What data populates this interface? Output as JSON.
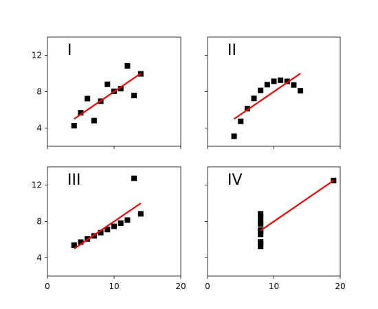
{
  "chart_data": [
    {
      "type": "scatter",
      "title": "I",
      "xlim": [
        0,
        20
      ],
      "ylim": [
        2,
        14
      ],
      "xticks": [
        0,
        10,
        20
      ],
      "yticks": [
        4,
        8,
        12
      ],
      "fit_line": {
        "x": [
          4,
          14
        ],
        "y": [
          5.0,
          10.0
        ],
        "color": "#ff0000"
      },
      "points": [
        {
          "x": 4,
          "y": 4.26
        },
        {
          "x": 5,
          "y": 5.68
        },
        {
          "x": 6,
          "y": 7.24
        },
        {
          "x": 7,
          "y": 4.82
        },
        {
          "x": 8,
          "y": 6.95
        },
        {
          "x": 9,
          "y": 8.81
        },
        {
          "x": 10,
          "y": 8.04
        },
        {
          "x": 11,
          "y": 8.33
        },
        {
          "x": 12,
          "y": 10.84
        },
        {
          "x": 13,
          "y": 7.58
        },
        {
          "x": 14,
          "y": 9.96
        }
      ]
    },
    {
      "type": "scatter",
      "title": "II",
      "xlim": [
        0,
        20
      ],
      "ylim": [
        2,
        14
      ],
      "xticks": [
        0,
        10,
        20
      ],
      "yticks": [
        4,
        8,
        12
      ],
      "fit_line": {
        "x": [
          4,
          14
        ],
        "y": [
          5.0,
          10.0
        ],
        "color": "#ff0000"
      },
      "points": [
        {
          "x": 4,
          "y": 3.1
        },
        {
          "x": 5,
          "y": 4.74
        },
        {
          "x": 6,
          "y": 6.13
        },
        {
          "x": 7,
          "y": 7.26
        },
        {
          "x": 8,
          "y": 8.14
        },
        {
          "x": 9,
          "y": 8.77
        },
        {
          "x": 10,
          "y": 9.14
        },
        {
          "x": 11,
          "y": 9.26
        },
        {
          "x": 12,
          "y": 9.13
        },
        {
          "x": 13,
          "y": 8.74
        },
        {
          "x": 14,
          "y": 8.1
        }
      ]
    },
    {
      "type": "scatter",
      "title": "III",
      "xlim": [
        0,
        20
      ],
      "ylim": [
        2,
        14
      ],
      "xticks": [
        0,
        10,
        20
      ],
      "yticks": [
        4,
        8,
        12
      ],
      "fit_line": {
        "x": [
          4,
          14
        ],
        "y": [
          5.0,
          10.0
        ],
        "color": "#ff0000"
      },
      "points": [
        {
          "x": 4,
          "y": 5.39
        },
        {
          "x": 5,
          "y": 5.73
        },
        {
          "x": 6,
          "y": 6.08
        },
        {
          "x": 7,
          "y": 6.42
        },
        {
          "x": 8,
          "y": 6.77
        },
        {
          "x": 9,
          "y": 7.11
        },
        {
          "x": 10,
          "y": 7.46
        },
        {
          "x": 11,
          "y": 7.81
        },
        {
          "x": 12,
          "y": 8.15
        },
        {
          "x": 13,
          "y": 12.74
        },
        {
          "x": 14,
          "y": 8.84
        }
      ]
    },
    {
      "type": "scatter",
      "title": "IV",
      "xlim": [
        0,
        20
      ],
      "ylim": [
        2,
        14
      ],
      "xticks": [
        0,
        10,
        20
      ],
      "yticks": [
        4,
        8,
        12
      ],
      "fit_line": {
        "x": [
          8,
          19
        ],
        "y": [
          7.0,
          12.5
        ],
        "color": "#ff0000"
      },
      "points": [
        {
          "x": 8,
          "y": 6.58
        },
        {
          "x": 8,
          "y": 5.76
        },
        {
          "x": 8,
          "y": 7.71
        },
        {
          "x": 8,
          "y": 8.84
        },
        {
          "x": 8,
          "y": 8.47
        },
        {
          "x": 8,
          "y": 7.04
        },
        {
          "x": 8,
          "y": 5.25
        },
        {
          "x": 19,
          "y": 12.5
        },
        {
          "x": 8,
          "y": 5.56
        },
        {
          "x": 8,
          "y": 7.91
        },
        {
          "x": 8,
          "y": 6.89
        }
      ]
    }
  ]
}
